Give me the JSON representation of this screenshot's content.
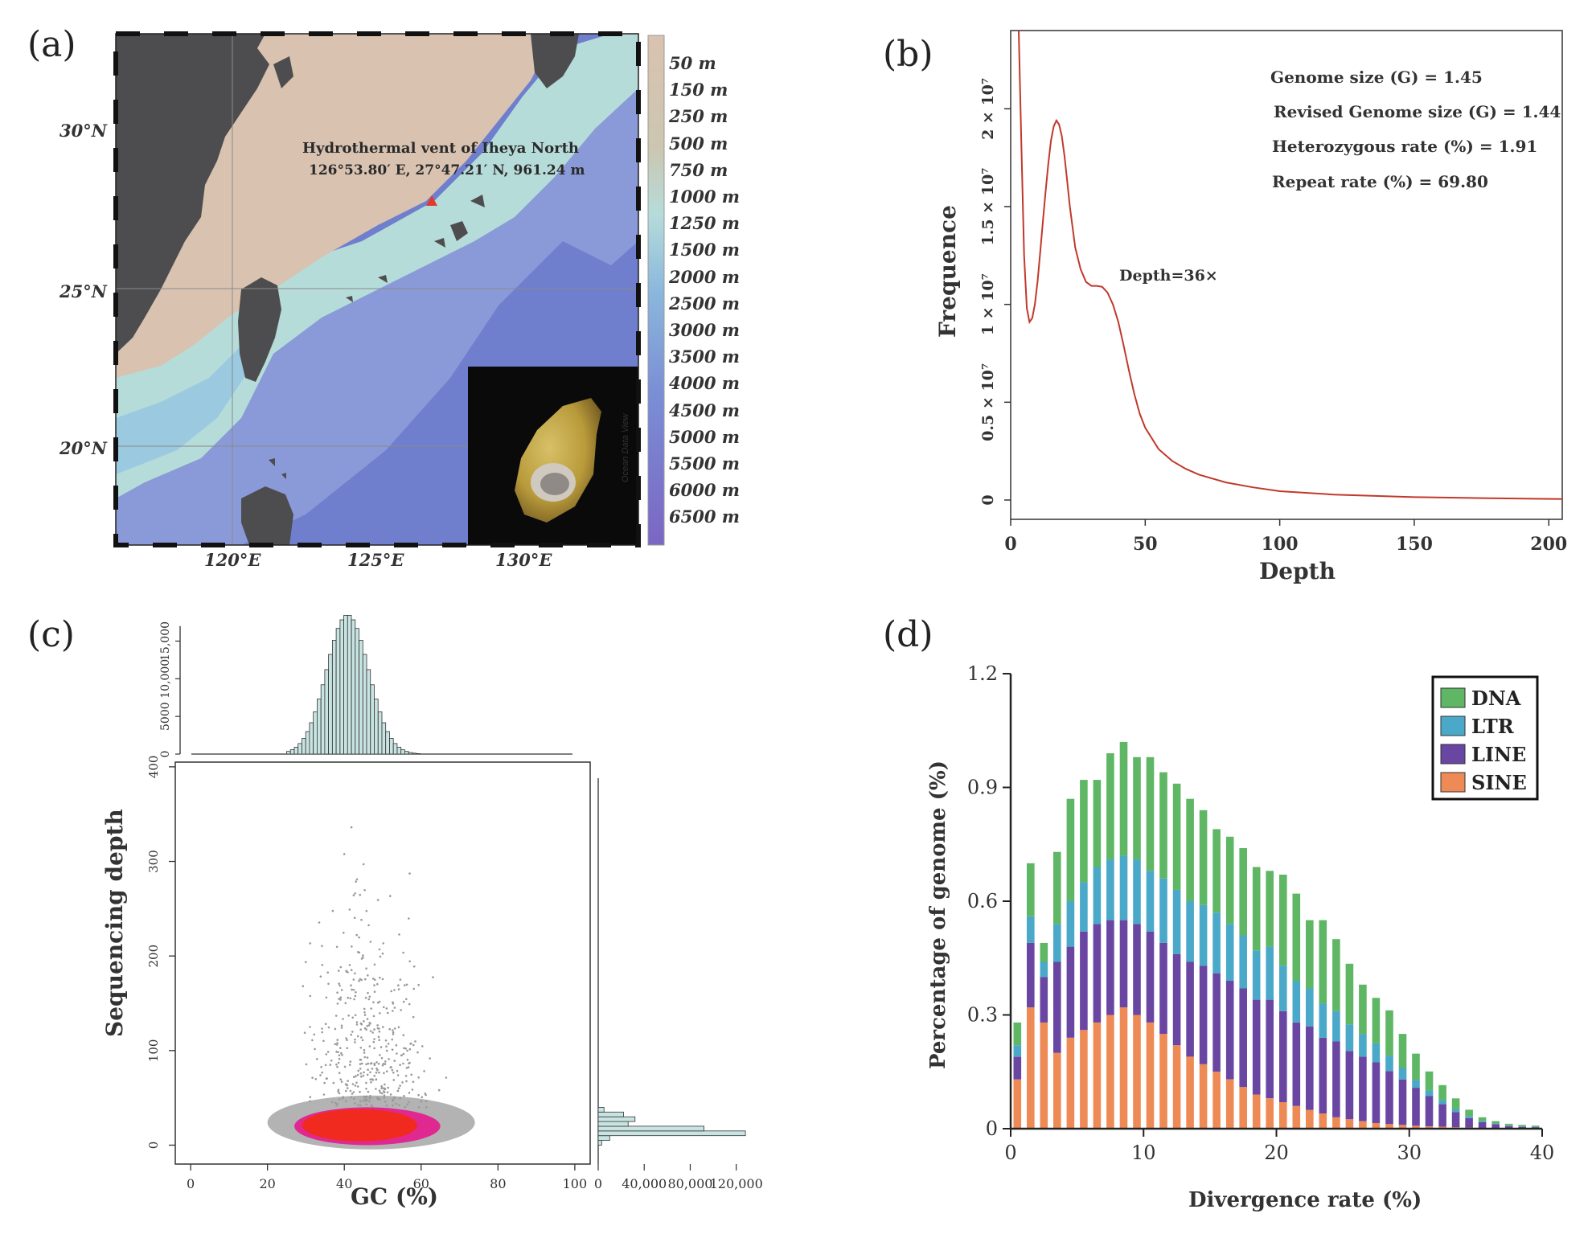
{
  "panel_a": {
    "label": "(a)",
    "vent_title": "Hydrothermal vent of Iheya North",
    "vent_coords": "126°53.80′ E, 27°47.21′ N, 961.24 m",
    "lat_labels": [
      "30°N",
      "25°N",
      "20°N"
    ],
    "lon_labels": [
      "120°E",
      "125°E",
      "130°E"
    ],
    "depth_scale": [
      "50 m",
      "150 m",
      "250 m",
      "500 m",
      "750 m",
      "1000 m",
      "1250 m",
      "1500 m",
      "2000 m",
      "2500 m",
      "3000 m",
      "3500 m",
      "4000 m",
      "4500 m",
      "5000 m",
      "5500 m",
      "6000 m",
      "6500 m"
    ],
    "watermark": "Ocean Data View",
    "colors": {
      "land": "#4d4d4f",
      "shelf": "#d9c2b0",
      "slope": "#b6dcda",
      "deep": "#6f7fcd",
      "vent_marker": "#e03c2d"
    }
  },
  "panel_b": {
    "label": "(b)",
    "annotations": [
      "Genome size (G) = 1.45",
      "Revised Genome size (G) = 1.44",
      "Heterozygous rate (%) = 1.91",
      "Repeat rate (%) = 69.80"
    ],
    "peak_label": "Depth=36×",
    "colors": {
      "line": "#c0392b"
    }
  },
  "panel_c": {
    "label": "(c)",
    "colors": {
      "points_low": "#999999",
      "points_mid": "#e8118a",
      "points_high": "#f02a1e",
      "hist": "#c8e4e2"
    }
  },
  "panel_d": {
    "label": "(d)",
    "colors": {
      "DNA": "#5fb665",
      "LTR": "#4aa8c8",
      "LINE": "#6a46a3",
      "SINE": "#ee8a55"
    }
  },
  "chart_data": [
    {
      "type": "line",
      "panel": "b",
      "xlabel": "Depth",
      "ylabel": "Frequence",
      "xlim": [
        0,
        205
      ],
      "ylim": [
        0,
        24000000
      ],
      "x_ticks": [
        0,
        50,
        100,
        150,
        200
      ],
      "y_ticks": [
        0,
        5000000,
        10000000,
        15000000,
        20000000
      ],
      "y_tick_labels": [
        "0",
        "0.5 × 10⁷",
        "1 × 10⁷",
        "1.5 × 10⁷",
        "2 × 10⁷"
      ],
      "grid": false,
      "series": [
        {
          "x": [
            3,
            4,
            5,
            6,
            7,
            8,
            9,
            10,
            11,
            12,
            13,
            14,
            15,
            16,
            17,
            18,
            19,
            20,
            21,
            22,
            24,
            26,
            28,
            30,
            32,
            34,
            36,
            38,
            40,
            42,
            44,
            46,
            48,
            50,
            55,
            60,
            65,
            70,
            80,
            90,
            100,
            120,
            150,
            175,
            205
          ],
          "y": [
            24000000,
            18000000,
            12500000,
            9800000,
            9100000,
            9300000,
            10000000,
            11200000,
            12700000,
            14300000,
            15800000,
            17200000,
            18400000,
            19100000,
            19400000,
            19200000,
            18600000,
            17600000,
            16300000,
            15000000,
            12900000,
            11800000,
            11150000,
            10950000,
            10950000,
            10900000,
            10600000,
            10000000,
            9100000,
            7900000,
            6600000,
            5400000,
            4400000,
            3700000,
            2600000,
            2000000,
            1600000,
            1300000,
            900000,
            650000,
            450000,
            280000,
            150000,
            100000,
            50000
          ]
        }
      ]
    },
    {
      "type": "scatter",
      "panel": "c",
      "xlabel": "GC (%)",
      "ylabel": "Sequencing depth",
      "xlim": [
        -4,
        104
      ],
      "ylim": [
        -20,
        405
      ],
      "x_ticks": [
        0,
        20,
        40,
        60,
        80,
        100
      ],
      "y_ticks": [
        0,
        100,
        200,
        300,
        400
      ],
      "density_regions": [
        {
          "label": "core",
          "gc_center": 44,
          "gc_halfwidth": 14,
          "depth_center": 22,
          "depth_halfwidth": 16
        },
        {
          "label": "mid",
          "gc_center": 45,
          "gc_halfwidth": 18,
          "depth_center": 22,
          "depth_halfwidth": 20
        }
      ],
      "top_histogram": {
        "xlabel": "GC (%)",
        "y_ticks": [
          0,
          5000,
          10000,
          15000
        ],
        "y_tick_labels": [
          "0",
          "5000",
          "10,000",
          "15,000"
        ],
        "peak_gc": 41,
        "peak_count": 18500,
        "sd": 5.5
      },
      "right_histogram": {
        "x_ticks": [
          0,
          40000,
          80000,
          120000
        ],
        "x_tick_labels": [
          "0",
          "40,000",
          "80,000",
          "120,000"
        ],
        "depth_bins": [
          0,
          5,
          10,
          15,
          20,
          25,
          30,
          35
        ],
        "counts": [
          3000,
          10000,
          128000,
          92000,
          26000,
          32000,
          22000,
          5000
        ]
      }
    },
    {
      "type": "bar",
      "panel": "d",
      "stacked": true,
      "xlabel": "Divergence rate (%)",
      "ylabel": "Percentage of genome (%)",
      "xlim": [
        0,
        40
      ],
      "ylim": [
        0,
        1.2
      ],
      "x_ticks": [
        0,
        10,
        20,
        30,
        40
      ],
      "y_ticks": [
        0,
        0.3,
        0.6,
        0.9,
        1.2
      ],
      "y_tick_labels": [
        "0",
        "0.3",
        "0.6",
        "0.9",
        "1.2"
      ],
      "legend_position": "top-right",
      "categories": [
        0,
        1,
        2,
        3,
        4,
        5,
        6,
        7,
        8,
        9,
        10,
        11,
        12,
        13,
        14,
        15,
        16,
        17,
        18,
        19,
        20,
        21,
        22,
        23,
        24,
        25,
        26,
        27,
        28,
        29,
        30,
        31,
        32,
        33,
        34,
        35,
        36,
        37,
        38,
        39
      ],
      "series": [
        {
          "name": "SINE",
          "values": [
            0.13,
            0.32,
            0.28,
            0.2,
            0.24,
            0.26,
            0.28,
            0.3,
            0.32,
            0.3,
            0.28,
            0.25,
            0.22,
            0.19,
            0.17,
            0.15,
            0.13,
            0.11,
            0.09,
            0.08,
            0.07,
            0.06,
            0.05,
            0.04,
            0.03,
            0.025,
            0.02,
            0.015,
            0.012,
            0.01,
            0.008,
            0.006,
            0.005,
            0.004,
            0.003,
            0.002,
            0.002,
            0.001,
            0.001,
            0.001
          ]
        },
        {
          "name": "LINE",
          "values": [
            0.06,
            0.17,
            0.12,
            0.24,
            0.24,
            0.26,
            0.26,
            0.25,
            0.23,
            0.24,
            0.24,
            0.24,
            0.24,
            0.25,
            0.26,
            0.26,
            0.26,
            0.26,
            0.25,
            0.26,
            0.24,
            0.22,
            0.22,
            0.2,
            0.2,
            0.18,
            0.17,
            0.16,
            0.14,
            0.12,
            0.1,
            0.08,
            0.06,
            0.04,
            0.025,
            0.015,
            0.01,
            0.006,
            0.004,
            0.003
          ]
        },
        {
          "name": "LTR",
          "values": [
            0.03,
            0.07,
            0.04,
            0.1,
            0.12,
            0.13,
            0.15,
            0.16,
            0.17,
            0.17,
            0.16,
            0.17,
            0.17,
            0.16,
            0.16,
            0.16,
            0.15,
            0.14,
            0.13,
            0.14,
            0.12,
            0.11,
            0.1,
            0.09,
            0.08,
            0.07,
            0.06,
            0.05,
            0.04,
            0.03,
            0.02,
            0.015,
            0.01,
            0.007,
            0.005,
            0.003,
            0.002,
            0.002,
            0.001,
            0.001
          ]
        },
        {
          "name": "DNA",
          "values": [
            0.06,
            0.14,
            0.05,
            0.19,
            0.27,
            0.27,
            0.23,
            0.28,
            0.3,
            0.27,
            0.3,
            0.28,
            0.28,
            0.27,
            0.25,
            0.22,
            0.23,
            0.23,
            0.22,
            0.2,
            0.24,
            0.23,
            0.18,
            0.22,
            0.19,
            0.16,
            0.13,
            0.12,
            0.12,
            0.09,
            0.07,
            0.05,
            0.04,
            0.029,
            0.017,
            0.01,
            0.006,
            0.004,
            0.004,
            0.003
          ]
        }
      ]
    }
  ]
}
